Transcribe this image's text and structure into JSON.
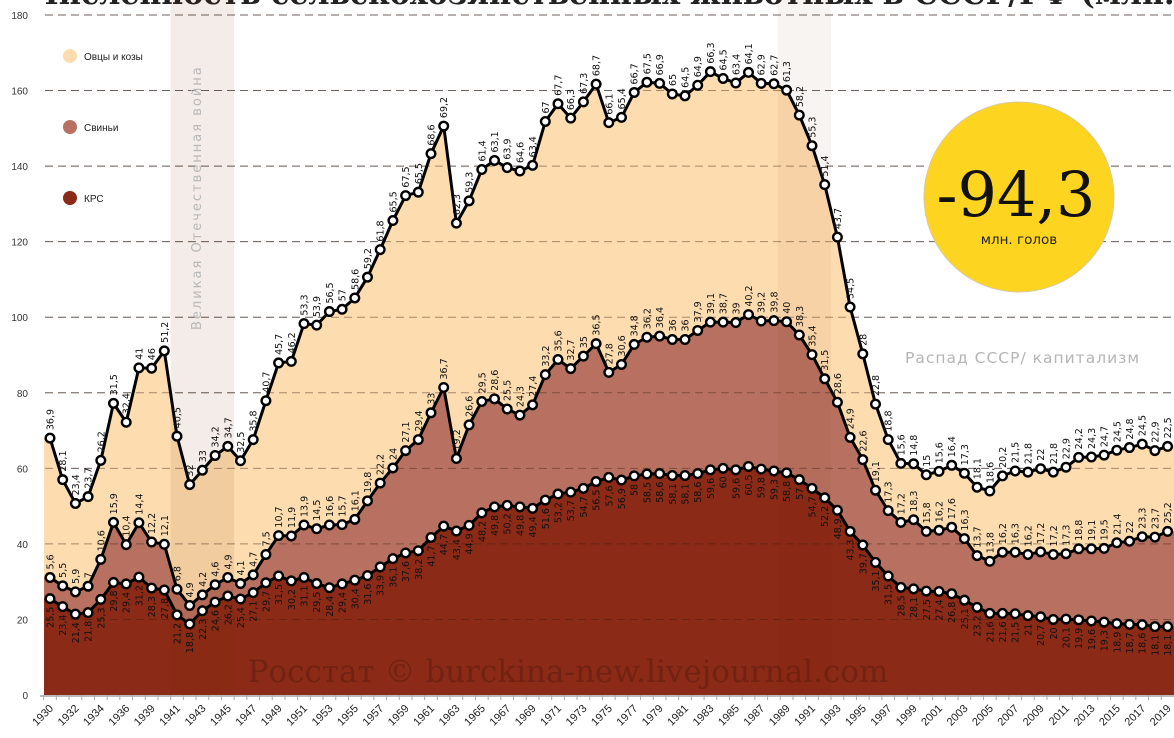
{
  "title": "Численность сельскохозяйственных животных в СССР/РФ (млн.)",
  "annotations": {
    "war": "Великая Отечественная война",
    "collapse": "Распад СССР/ капитализм",
    "watermark": "Росстат © burckina-new.livejournal.com",
    "badge_value": "-94,3",
    "badge_unit": "млн. голов",
    "badge_color": "#FDD520"
  },
  "chart_data": {
    "type": "area",
    "stacked": true,
    "ylim": [
      0,
      180
    ],
    "yticks": [
      0,
      20,
      40,
      60,
      80,
      100,
      120,
      140,
      160,
      180
    ],
    "grid": true,
    "legend_position": "top-left",
    "x": [
      1930,
      1931,
      1932,
      1933,
      1934,
      1935,
      1936,
      1938,
      1939,
      1940,
      1941,
      1942,
      1943,
      1944,
      1945,
      1946,
      1947,
      1948,
      1949,
      1950,
      1951,
      1952,
      1953,
      1954,
      1955,
      1956,
      1957,
      1958,
      1959,
      1960,
      1961,
      1962,
      1963,
      1964,
      1965,
      1966,
      1967,
      1968,
      1969,
      1970,
      1971,
      1972,
      1973,
      1974,
      1975,
      1976,
      1977,
      1978,
      1979,
      1980,
      1981,
      1982,
      1983,
      1984,
      1985,
      1986,
      1987,
      1988,
      1989,
      1990,
      1991,
      1992,
      1993,
      1994,
      1995,
      1996,
      1997,
      1998,
      1999,
      2000,
      2001,
      2002,
      2003,
      2004,
      2005,
      2006,
      2007,
      2008,
      2009,
      2010,
      2011,
      2012,
      2013,
      2014,
      2015,
      2016,
      2017,
      2018,
      2019
    ],
    "series": [
      {
        "name": "КРС",
        "color": "#8B2A17",
        "values": [
          25.5,
          23.4,
          21.4,
          21.8,
          25.3,
          29.8,
          29.4,
          31.2,
          28.3,
          27.8,
          21.2,
          18.8,
          22.3,
          24.6,
          26.2,
          25.4,
          27.1,
          29.7,
          31.5,
          30.2,
          31.1,
          29.5,
          28.4,
          29.4,
          30.4,
          31.6,
          33.9,
          36.1,
          37.6,
          38.2,
          41.7,
          44.7,
          43.4,
          44.9,
          48.2,
          49.8,
          50.2,
          49.8,
          49.4,
          51.6,
          53.2,
          53.7,
          54.7,
          56.5,
          57.6,
          56.9,
          58,
          58.5,
          58.6,
          58.1,
          58.1,
          58.6,
          59.6,
          60,
          59.6,
          60.5,
          59.8,
          59.3,
          58.8,
          57,
          54.7,
          52.2,
          48.9,
          43.3,
          39.7,
          35.1,
          31.5,
          28.5,
          28.1,
          27.5,
          27.4,
          26.8,
          25.1,
          23.2,
          21.6,
          21.6,
          21.5,
          21,
          20.7,
          20,
          20.1,
          19.9,
          19.6,
          19.3,
          18.9,
          18.7,
          18.6,
          18.1,
          18.1
        ]
      },
      {
        "name": "Свиньи",
        "color": "#B87160",
        "values": [
          5.6,
          5.5,
          5.9,
          7,
          10.6,
          15.9,
          10.4,
          14.4,
          12.2,
          12.1,
          6.8,
          4.9,
          4.2,
          4.6,
          4.9,
          4.1,
          4.7,
          7.5,
          10.7,
          11.9,
          13.9,
          14.5,
          16.6,
          15.7,
          16.1,
          19.8,
          22.2,
          24,
          27.1,
          29.4,
          33,
          36.7,
          19.2,
          26.6,
          29.5,
          28.6,
          25.5,
          24.3,
          27.4,
          33.2,
          35.6,
          32.7,
          35,
          36.5,
          27.8,
          30.6,
          34.8,
          36.2,
          36.4,
          36,
          36,
          37.9,
          39.1,
          38.7,
          39,
          40.2,
          39.2,
          39.8,
          40,
          38.3,
          35.4,
          31.5,
          28.6,
          24.9,
          22.6,
          19.1,
          17.3,
          17.2,
          18.3,
          15.8,
          16.2,
          17.6,
          16.3,
          13.7,
          13.8,
          16.2,
          16.3,
          16.2,
          17.2,
          17.2,
          17.3,
          18.8,
          19.1,
          19.5,
          21.4,
          22,
          23.3,
          23.7,
          25.2
        ]
      },
      {
        "name": "Овцы и козы",
        "color": "#FDDCAF",
        "values": [
          36.9,
          28.1,
          23.4,
          23.7,
          26.2,
          31.5,
          32.4,
          41,
          46,
          51.2,
          40.5,
          32,
          33,
          34.2,
          34.7,
          32.5,
          35.8,
          40.7,
          45.7,
          46.2,
          53.3,
          53.9,
          56.5,
          57,
          58.6,
          59.2,
          61.8,
          65.5,
          67.5,
          65.5,
          68.6,
          69.2,
          62.3,
          59.3,
          61.4,
          63.1,
          63.9,
          64.6,
          63.4,
          67,
          67.7,
          66.3,
          67.3,
          68.7,
          66.1,
          65.4,
          66.7,
          67.5,
          66.9,
          65,
          64.5,
          64.9,
          66.3,
          64.5,
          63.4,
          64.1,
          62.9,
          62.7,
          61.3,
          58.2,
          55.3,
          51.4,
          43.7,
          34.5,
          28,
          22.8,
          18.8,
          15.6,
          14.8,
          15,
          15.6,
          16.4,
          17.3,
          18.1,
          18.6,
          20.2,
          21.5,
          21.8,
          22,
          21.8,
          22.9,
          24.2,
          24.3,
          24.7,
          24.5,
          24.8,
          24.5,
          22.9,
          22.5
        ]
      }
    ],
    "legend": [
      "Овцы и козы",
      "Свиньи",
      "КРС"
    ]
  }
}
